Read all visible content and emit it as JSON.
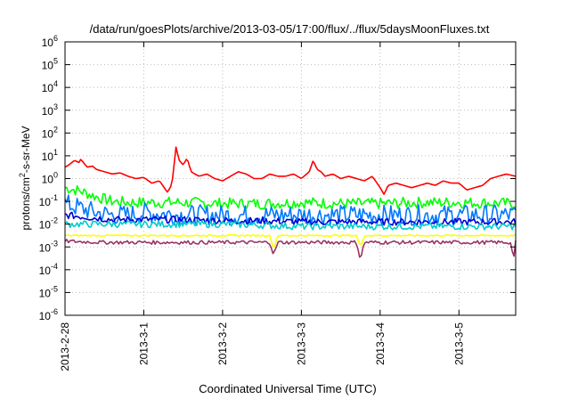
{
  "chart_data": {
    "type": "line",
    "title": "/data/run/goesPlots/archive/2013-03-05/17:00/flux/../flux/5daysMoonFluxes.txt",
    "xlabel": "Coordinated Universal Time (UTC)",
    "ylabel": {
      "base": "protons/cm",
      "sup": "2",
      "rest": "-s-sr-MeV"
    },
    "yscale": "log",
    "ylim": [
      -6,
      6
    ],
    "y_ticks": [
      {
        "base": "10",
        "exp": "-6",
        "v": -6
      },
      {
        "base": "10",
        "exp": "-5",
        "v": -5
      },
      {
        "base": "10",
        "exp": "-4",
        "v": -4
      },
      {
        "base": "10",
        "exp": "-3",
        "v": -3
      },
      {
        "base": "10",
        "exp": "-2",
        "v": -2
      },
      {
        "base": "10",
        "exp": "-1",
        "v": -1
      },
      {
        "base": "10",
        "exp": "0",
        "v": 0
      },
      {
        "base": "10",
        "exp": "1",
        "v": 1
      },
      {
        "base": "10",
        "exp": "2",
        "v": 2
      },
      {
        "base": "10",
        "exp": "3",
        "v": 3
      },
      {
        "base": "10",
        "exp": "4",
        "v": 4
      },
      {
        "base": "10",
        "exp": "5",
        "v": 5
      },
      {
        "base": "10",
        "exp": "6",
        "v": 6
      }
    ],
    "x_ticks": [
      {
        "label": "2013-2-28",
        "day": 0
      },
      {
        "label": "2013-3-1",
        "day": 1
      },
      {
        "label": "2013-3-2",
        "day": 2
      },
      {
        "label": "2013-3-3",
        "day": 3
      },
      {
        "label": "2013-3-4",
        "day": 4
      },
      {
        "label": "2013-3-5",
        "day": 5
      }
    ],
    "xlim_days": [
      0,
      5.72
    ],
    "grid": true,
    "legend": "none",
    "series": [
      {
        "color": "#ff0000",
        "x": [
          0,
          0.05,
          0.12,
          0.18,
          0.2,
          0.28,
          0.35,
          0.4,
          0.5,
          0.6,
          0.7,
          0.8,
          0.9,
          1.0,
          1.1,
          1.2,
          1.3,
          1.35,
          1.38,
          1.4,
          1.42,
          1.45,
          1.5,
          1.55,
          1.6,
          1.7,
          1.8,
          1.9,
          2.0,
          2.1,
          2.2,
          2.3,
          2.4,
          2.5,
          2.6,
          2.7,
          2.8,
          2.9,
          3.0,
          3.1,
          3.15,
          3.2,
          3.25,
          3.3,
          3.4,
          3.5,
          3.6,
          3.7,
          3.8,
          3.9,
          4.0,
          4.05,
          4.1,
          4.2,
          4.3,
          4.4,
          4.5,
          4.6,
          4.7,
          4.8,
          4.9,
          5.0,
          5.1,
          5.2,
          5.3,
          5.4,
          5.5,
          5.6,
          5.72
        ],
        "y": [
          0.5,
          0.6,
          0.8,
          0.7,
          0.85,
          0.5,
          0.55,
          0.4,
          0.3,
          0.2,
          0.25,
          0.1,
          0.0,
          0.05,
          -0.2,
          -0.1,
          -0.6,
          -0.3,
          0.3,
          1.5,
          1.2,
          0.8,
          0.6,
          0.9,
          0.3,
          0.1,
          0.2,
          0.0,
          -0.1,
          0.1,
          0.3,
          0.2,
          0.0,
          0.0,
          0.2,
          0.1,
          0.1,
          0.2,
          0.0,
          0.3,
          0.8,
          0.4,
          0.3,
          0.1,
          0.2,
          0.0,
          0.1,
          0.0,
          -0.1,
          0.1,
          -0.4,
          -0.7,
          -0.3,
          -0.2,
          -0.3,
          -0.4,
          -0.3,
          -0.2,
          -0.3,
          -0.1,
          -0.2,
          -0.2,
          -0.5,
          -0.4,
          -0.3,
          0.0,
          0.1,
          0.2,
          0.1
        ]
      },
      {
        "color": "#00ff00",
        "x": [
          0,
          0.2,
          0.4,
          0.6,
          0.8,
          1.0,
          1.5,
          2.0,
          2.5,
          3.0,
          3.5,
          4.0,
          4.5,
          5.0,
          5.72
        ],
        "y": [
          -0.4,
          -0.55,
          -0.8,
          -1.0,
          -1.05,
          -1.05,
          -1.05,
          -1.1,
          -1.1,
          -1.05,
          -1.1,
          -1.1,
          -1.05,
          -1.05,
          -1.1
        ],
        "jitter": 0.25
      },
      {
        "color": "#0078ff",
        "x": [
          0,
          0.2,
          0.4,
          0.6,
          0.8,
          1.0,
          1.5,
          2.0,
          2.5,
          3.0,
          3.5,
          4.0,
          4.5,
          5.0,
          5.72
        ],
        "y": [
          -1.1,
          -1.3,
          -1.5,
          -1.6,
          -1.6,
          -1.5,
          -1.6,
          -1.6,
          -1.6,
          -1.6,
          -1.6,
          -1.6,
          -1.6,
          -1.6,
          -1.6
        ],
        "jitter": 0.45
      },
      {
        "color": "#0000d0",
        "x": [
          0,
          0.3,
          0.6,
          1.0,
          1.5,
          2.0,
          2.5,
          3.0,
          3.5,
          4.0,
          4.5,
          5.0,
          5.72
        ],
        "y": [
          -1.6,
          -1.7,
          -1.8,
          -1.8,
          -1.8,
          -1.85,
          -1.85,
          -1.9,
          -1.9,
          -1.9,
          -1.9,
          -1.9,
          -1.9
        ],
        "jitter": 0.15
      },
      {
        "color": "#00cccc",
        "x": [
          0,
          0.5,
          1.0,
          2.0,
          3.0,
          4.0,
          5.0,
          5.72
        ],
        "y": [
          -2.0,
          -2.0,
          -2.0,
          -2.0,
          -2.1,
          -2.1,
          -2.1,
          -2.1
        ],
        "jitter": 0.15
      },
      {
        "color": "#ffff00",
        "x": [
          0,
          1.0,
          2.0,
          2.6,
          2.65,
          2.7,
          3.0,
          3.7,
          3.75,
          3.8,
          4.0,
          5.0,
          5.72
        ],
        "y": [
          -2.5,
          -2.5,
          -2.5,
          -2.5,
          -3.1,
          -2.5,
          -2.5,
          -2.5,
          -3.0,
          -2.5,
          -2.5,
          -2.5,
          -2.5
        ],
        "jitter": 0.03
      },
      {
        "color": "#993366",
        "x": [
          0,
          0.5,
          1.0,
          2.0,
          2.6,
          2.65,
          2.7,
          3.0,
          3.7,
          3.75,
          3.8,
          4.0,
          4.7,
          5.0,
          5.65,
          5.7,
          5.72
        ],
        "y": [
          -2.75,
          -2.8,
          -2.8,
          -2.8,
          -2.8,
          -3.35,
          -2.8,
          -2.8,
          -2.8,
          -3.55,
          -2.8,
          -2.8,
          -2.8,
          -2.8,
          -2.8,
          -3.45,
          -2.8
        ],
        "jitter": 0.08
      }
    ]
  }
}
